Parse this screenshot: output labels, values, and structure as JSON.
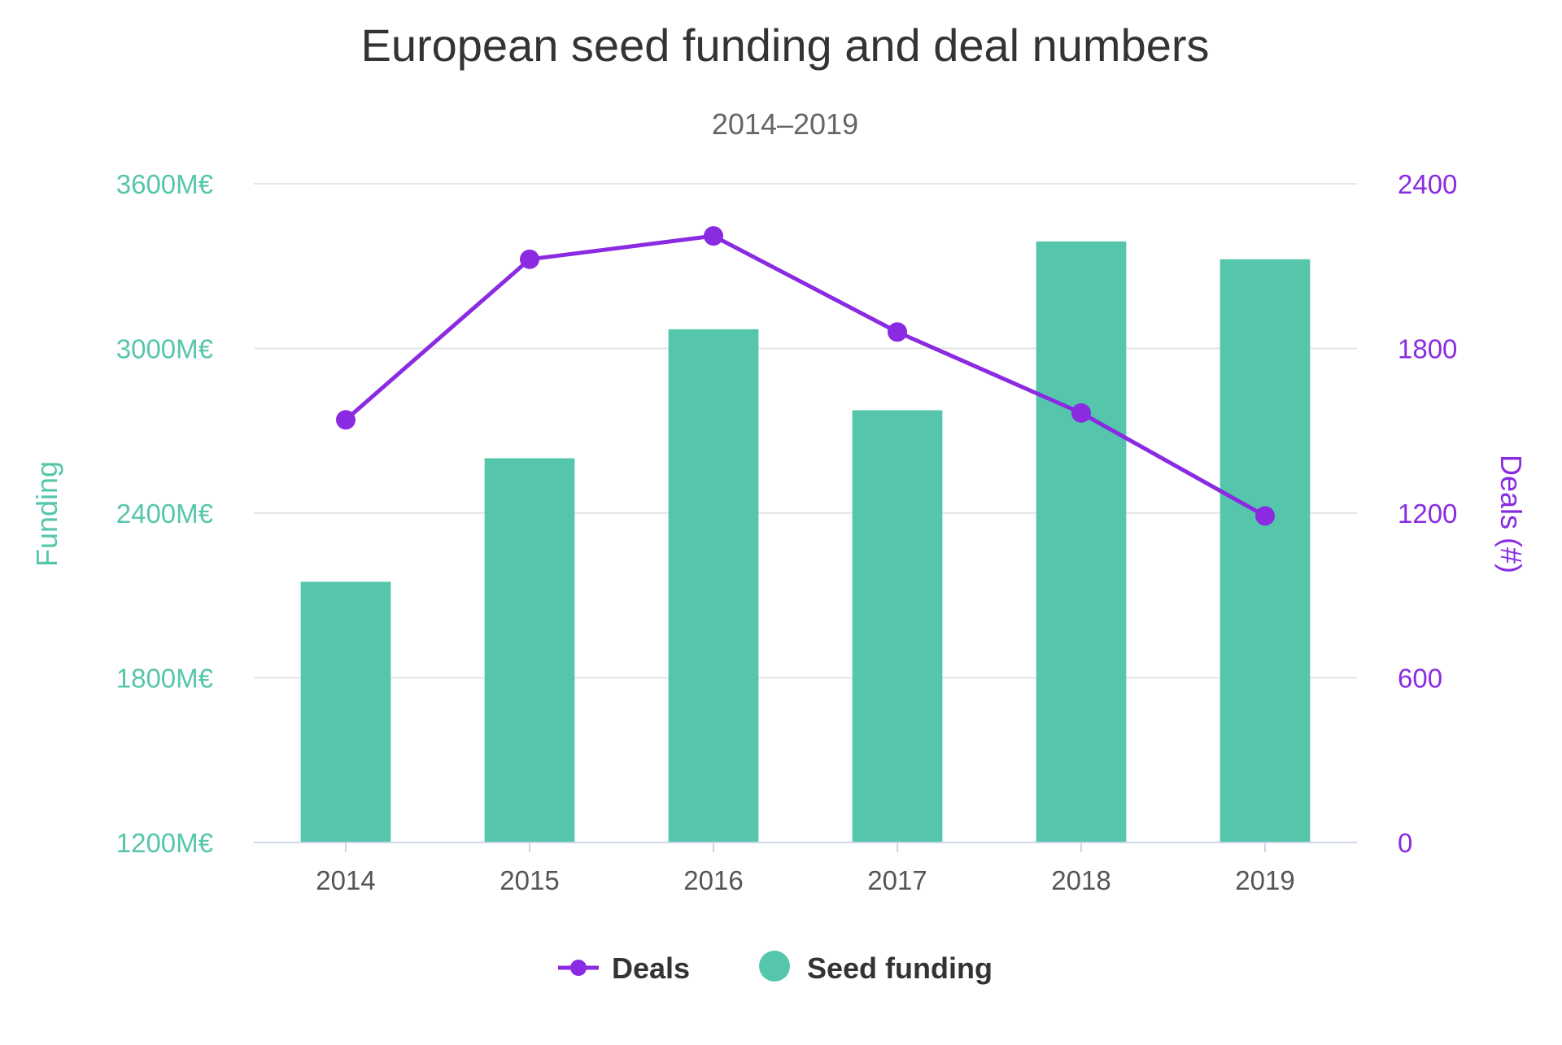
{
  "chart_data": {
    "type": "bar",
    "title": "European seed funding and deal numbers",
    "subtitle": "2014–2019",
    "categories": [
      "2014",
      "2015",
      "2016",
      "2017",
      "2018",
      "2019"
    ],
    "x_tick_labels": [
      "2014",
      "2015",
      "2016",
      "2017",
      "2018",
      "2019"
    ],
    "y_left": {
      "label": "Funding",
      "ylim": [
        1200,
        3600
      ],
      "ticks": [
        1200,
        1800,
        2400,
        3000,
        3600
      ],
      "tick_labels": [
        "1200M€",
        "1800M€",
        "2400M€",
        "3000M€",
        "3600M€"
      ],
      "color": "#55c6ab"
    },
    "y_right": {
      "label": "Deals (#)",
      "ylim": [
        0,
        2400
      ],
      "ticks": [
        0,
        600,
        1200,
        1800,
        2400
      ],
      "tick_labels": [
        "0",
        "600",
        "1200",
        "1800",
        "2400"
      ],
      "color": "#8a2be2"
    },
    "series": [
      {
        "name": "Seed funding",
        "type": "bar",
        "axis": "left",
        "color": "#55c6ab",
        "values": [
          2150,
          2600,
          3070,
          2775,
          3390,
          3325
        ]
      },
      {
        "name": "Deals",
        "type": "line",
        "axis": "right",
        "color": "#8a2be2",
        "values": [
          1540,
          2125,
          2210,
          1860,
          1565,
          1190
        ]
      }
    ],
    "legend": {
      "position": "bottom",
      "items": [
        "Deals",
        "Seed funding"
      ]
    },
    "grid": true
  }
}
